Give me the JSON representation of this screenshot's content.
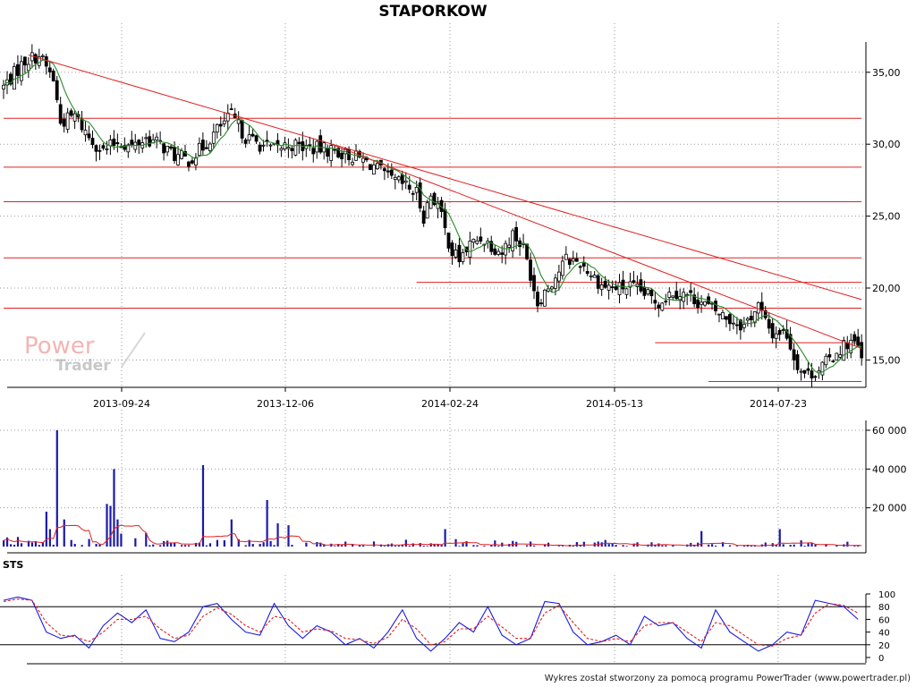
{
  "title": "STAPORKOW",
  "footer": "Wykres został stworzony za pomocą programu PowerTrader (www.powertrader.pl)",
  "watermark": {
    "line1": "Power",
    "line2": "Trader"
  },
  "colors": {
    "candle": "#000000",
    "ma": "#2a8a2a",
    "trend": "#e02020",
    "volume": "#1a1aa8",
    "volume_ma": "#e02020",
    "sts_k": "#1a1ae0",
    "sts_d": "#e02020"
  },
  "chart_data": [
    {
      "type": "candlestick",
      "title": "STAPORKOW",
      "x_tick_labels": [
        "2013-09-24",
        "2013-12-06",
        "2014-02-24",
        "2014-05-13",
        "2014-07-23"
      ],
      "y_tick_labels": [
        "15,00",
        "20,00",
        "25,00",
        "30,00",
        "35,00"
      ],
      "ylim": [
        13.2,
        37.4
      ],
      "grid": true,
      "close_path": [
        [
          0,
          34.0
        ],
        [
          6,
          35.8
        ],
        [
          10,
          36.2
        ],
        [
          14,
          34.5
        ],
        [
          16,
          31.5
        ],
        [
          20,
          32.0
        ],
        [
          24,
          30.5
        ],
        [
          28,
          29.5
        ],
        [
          32,
          30.2
        ],
        [
          36,
          29.8
        ],
        [
          40,
          30.4
        ],
        [
          44,
          30.0
        ],
        [
          48,
          29.2
        ],
        [
          52,
          28.9
        ],
        [
          56,
          29.8
        ],
        [
          60,
          31.0
        ],
        [
          64,
          32.0
        ],
        [
          68,
          30.5
        ],
        [
          72,
          30.0
        ],
        [
          76,
          29.6
        ],
        [
          80,
          30.0
        ],
        [
          84,
          29.8
        ],
        [
          88,
          29.7
        ],
        [
          92,
          29.6
        ],
        [
          96,
          29.3
        ],
        [
          100,
          29.0
        ],
        [
          104,
          28.5
        ],
        [
          108,
          27.6
        ],
        [
          112,
          27.2
        ],
        [
          116,
          26.6
        ],
        [
          118,
          25.0
        ],
        [
          120,
          26.5
        ],
        [
          122,
          25.8
        ],
        [
          124,
          24.0
        ],
        [
          126,
          22.5
        ],
        [
          128,
          22.0
        ],
        [
          131,
          23.0
        ],
        [
          134,
          23.5
        ],
        [
          137,
          23.0
        ],
        [
          140,
          22.5
        ],
        [
          143,
          23.8
        ],
        [
          146,
          22.8
        ],
        [
          148,
          21.0
        ],
        [
          150,
          19.0
        ],
        [
          152,
          19.8
        ],
        [
          155,
          20.8
        ],
        [
          158,
          22.0
        ],
        [
          162,
          21.8
        ],
        [
          165,
          21.0
        ],
        [
          168,
          20.2
        ],
        [
          172,
          20.0
        ],
        [
          176,
          20.1
        ],
        [
          180,
          19.6
        ],
        [
          184,
          19.0
        ],
        [
          188,
          19.8
        ],
        [
          192,
          19.5
        ],
        [
          196,
          19.0
        ],
        [
          200,
          18.4
        ],
        [
          204,
          17.8
        ],
        [
          208,
          17.4
        ],
        [
          212,
          18.8
        ],
        [
          214,
          17.6
        ],
        [
          216,
          16.8
        ],
        [
          218,
          17.0
        ],
        [
          220,
          16.8
        ],
        [
          222,
          15.2
        ],
        [
          224,
          14.3
        ],
        [
          226,
          14.0
        ],
        [
          228,
          14.2
        ],
        [
          230,
          14.6
        ],
        [
          232,
          15.0
        ],
        [
          234,
          15.6
        ],
        [
          236,
          16.0
        ],
        [
          238,
          16.3
        ],
        [
          240,
          15.8
        ],
        [
          241,
          15.0
        ]
      ],
      "trend_lines": [
        {
          "from": [
            7,
            36.2
          ],
          "to": [
            241,
            19.2
          ]
        },
        {
          "from": [
            92,
            30.0
          ],
          "to": [
            241,
            15.8
          ]
        }
      ],
      "horizontal_levels": [
        {
          "y": 31.8,
          "from": 0,
          "to": 241
        },
        {
          "y": 28.4,
          "from": 0,
          "to": 241
        },
        {
          "y": 26.0,
          "from": 0,
          "to": 241
        },
        {
          "y": 22.1,
          "from": 0,
          "to": 241
        },
        {
          "y": 20.4,
          "from": 116,
          "to": 241
        },
        {
          "y": 18.6,
          "from": 0,
          "to": 241
        },
        {
          "y": 16.2,
          "from": 183,
          "to": 241
        },
        {
          "y": 13.5,
          "from": 198,
          "to": 241
        }
      ]
    },
    {
      "type": "bar",
      "title": "",
      "y_tick_labels": [
        "20 000",
        "40 000",
        "60 000"
      ],
      "ylim": [
        0,
        70000
      ],
      "spikes": [
        [
          12,
          18000
        ],
        [
          13,
          9000
        ],
        [
          15,
          60000
        ],
        [
          17,
          14000
        ],
        [
          29,
          22000
        ],
        [
          30,
          21000
        ],
        [
          31,
          40000
        ],
        [
          32,
          14000
        ],
        [
          56,
          42000
        ],
        [
          64,
          14000
        ],
        [
          74,
          24000
        ],
        [
          77,
          12000
        ],
        [
          80,
          11000
        ],
        [
          124,
          9000
        ],
        [
          196,
          8000
        ],
        [
          218,
          9000
        ]
      ]
    },
    {
      "type": "line",
      "title": "STS",
      "y_tick_labels": [
        "0",
        "20",
        "40",
        "60",
        "80",
        "100"
      ],
      "ylim": [
        0,
        100
      ],
      "reference_lines": [
        20,
        80
      ],
      "series": [
        {
          "key": "k",
          "values": [
            [
              0,
              90
            ],
            [
              4,
              95
            ],
            [
              8,
              90
            ],
            [
              12,
              40
            ],
            [
              16,
              30
            ],
            [
              20,
              35
            ],
            [
              24,
              15
            ],
            [
              28,
              50
            ],
            [
              32,
              70
            ],
            [
              36,
              55
            ],
            [
              40,
              75
            ],
            [
              44,
              30
            ],
            [
              48,
              25
            ],
            [
              52,
              40
            ],
            [
              56,
              80
            ],
            [
              60,
              85
            ],
            [
              64,
              60
            ],
            [
              68,
              40
            ],
            [
              72,
              35
            ],
            [
              76,
              85
            ],
            [
              80,
              50
            ],
            [
              84,
              30
            ],
            [
              88,
              50
            ],
            [
              92,
              40
            ],
            [
              96,
              20
            ],
            [
              100,
              30
            ],
            [
              104,
              15
            ],
            [
              108,
              40
            ],
            [
              112,
              75
            ],
            [
              116,
              30
            ],
            [
              120,
              10
            ],
            [
              124,
              30
            ],
            [
              128,
              55
            ],
            [
              132,
              40
            ],
            [
              136,
              80
            ],
            [
              140,
              35
            ],
            [
              144,
              20
            ],
            [
              148,
              30
            ],
            [
              152,
              88
            ],
            [
              156,
              85
            ],
            [
              160,
              40
            ],
            [
              164,
              20
            ],
            [
              168,
              25
            ],
            [
              172,
              35
            ],
            [
              176,
              20
            ],
            [
              180,
              65
            ],
            [
              184,
              50
            ],
            [
              188,
              55
            ],
            [
              192,
              30
            ],
            [
              196,
              15
            ],
            [
              200,
              75
            ],
            [
              204,
              40
            ],
            [
              208,
              25
            ],
            [
              212,
              10
            ],
            [
              216,
              20
            ],
            [
              220,
              40
            ],
            [
              224,
              35
            ],
            [
              228,
              90
            ],
            [
              232,
              85
            ],
            [
              236,
              80
            ],
            [
              240,
              60
            ]
          ]
        },
        {
          "key": "d",
          "values": [
            [
              0,
              88
            ],
            [
              4,
              92
            ],
            [
              8,
              90
            ],
            [
              12,
              55
            ],
            [
              16,
              35
            ],
            [
              20,
              33
            ],
            [
              24,
              25
            ],
            [
              28,
              40
            ],
            [
              32,
              60
            ],
            [
              36,
              60
            ],
            [
              40,
              65
            ],
            [
              44,
              45
            ],
            [
              48,
              30
            ],
            [
              52,
              35
            ],
            [
              56,
              65
            ],
            [
              60,
              78
            ],
            [
              64,
              68
            ],
            [
              68,
              50
            ],
            [
              72,
              40
            ],
            [
              76,
              65
            ],
            [
              80,
              60
            ],
            [
              84,
              40
            ],
            [
              88,
              45
            ],
            [
              92,
              42
            ],
            [
              96,
              30
            ],
            [
              100,
              28
            ],
            [
              104,
              22
            ],
            [
              108,
              32
            ],
            [
              112,
              60
            ],
            [
              116,
              45
            ],
            [
              120,
              20
            ],
            [
              124,
              25
            ],
            [
              128,
              45
            ],
            [
              132,
              45
            ],
            [
              136,
              65
            ],
            [
              140,
              48
            ],
            [
              144,
              30
            ],
            [
              148,
              30
            ],
            [
              152,
              70
            ],
            [
              156,
              82
            ],
            [
              160,
              55
            ],
            [
              164,
              30
            ],
            [
              168,
              25
            ],
            [
              172,
              30
            ],
            [
              176,
              25
            ],
            [
              180,
              50
            ],
            [
              184,
              55
            ],
            [
              188,
              55
            ],
            [
              192,
              40
            ],
            [
              196,
              25
            ],
            [
              200,
              55
            ],
            [
              204,
              50
            ],
            [
              208,
              35
            ],
            [
              212,
              20
            ],
            [
              216,
              18
            ],
            [
              220,
              30
            ],
            [
              224,
              35
            ],
            [
              228,
              70
            ],
            [
              232,
              85
            ],
            [
              236,
              82
            ],
            [
              240,
              70
            ]
          ]
        }
      ]
    }
  ]
}
